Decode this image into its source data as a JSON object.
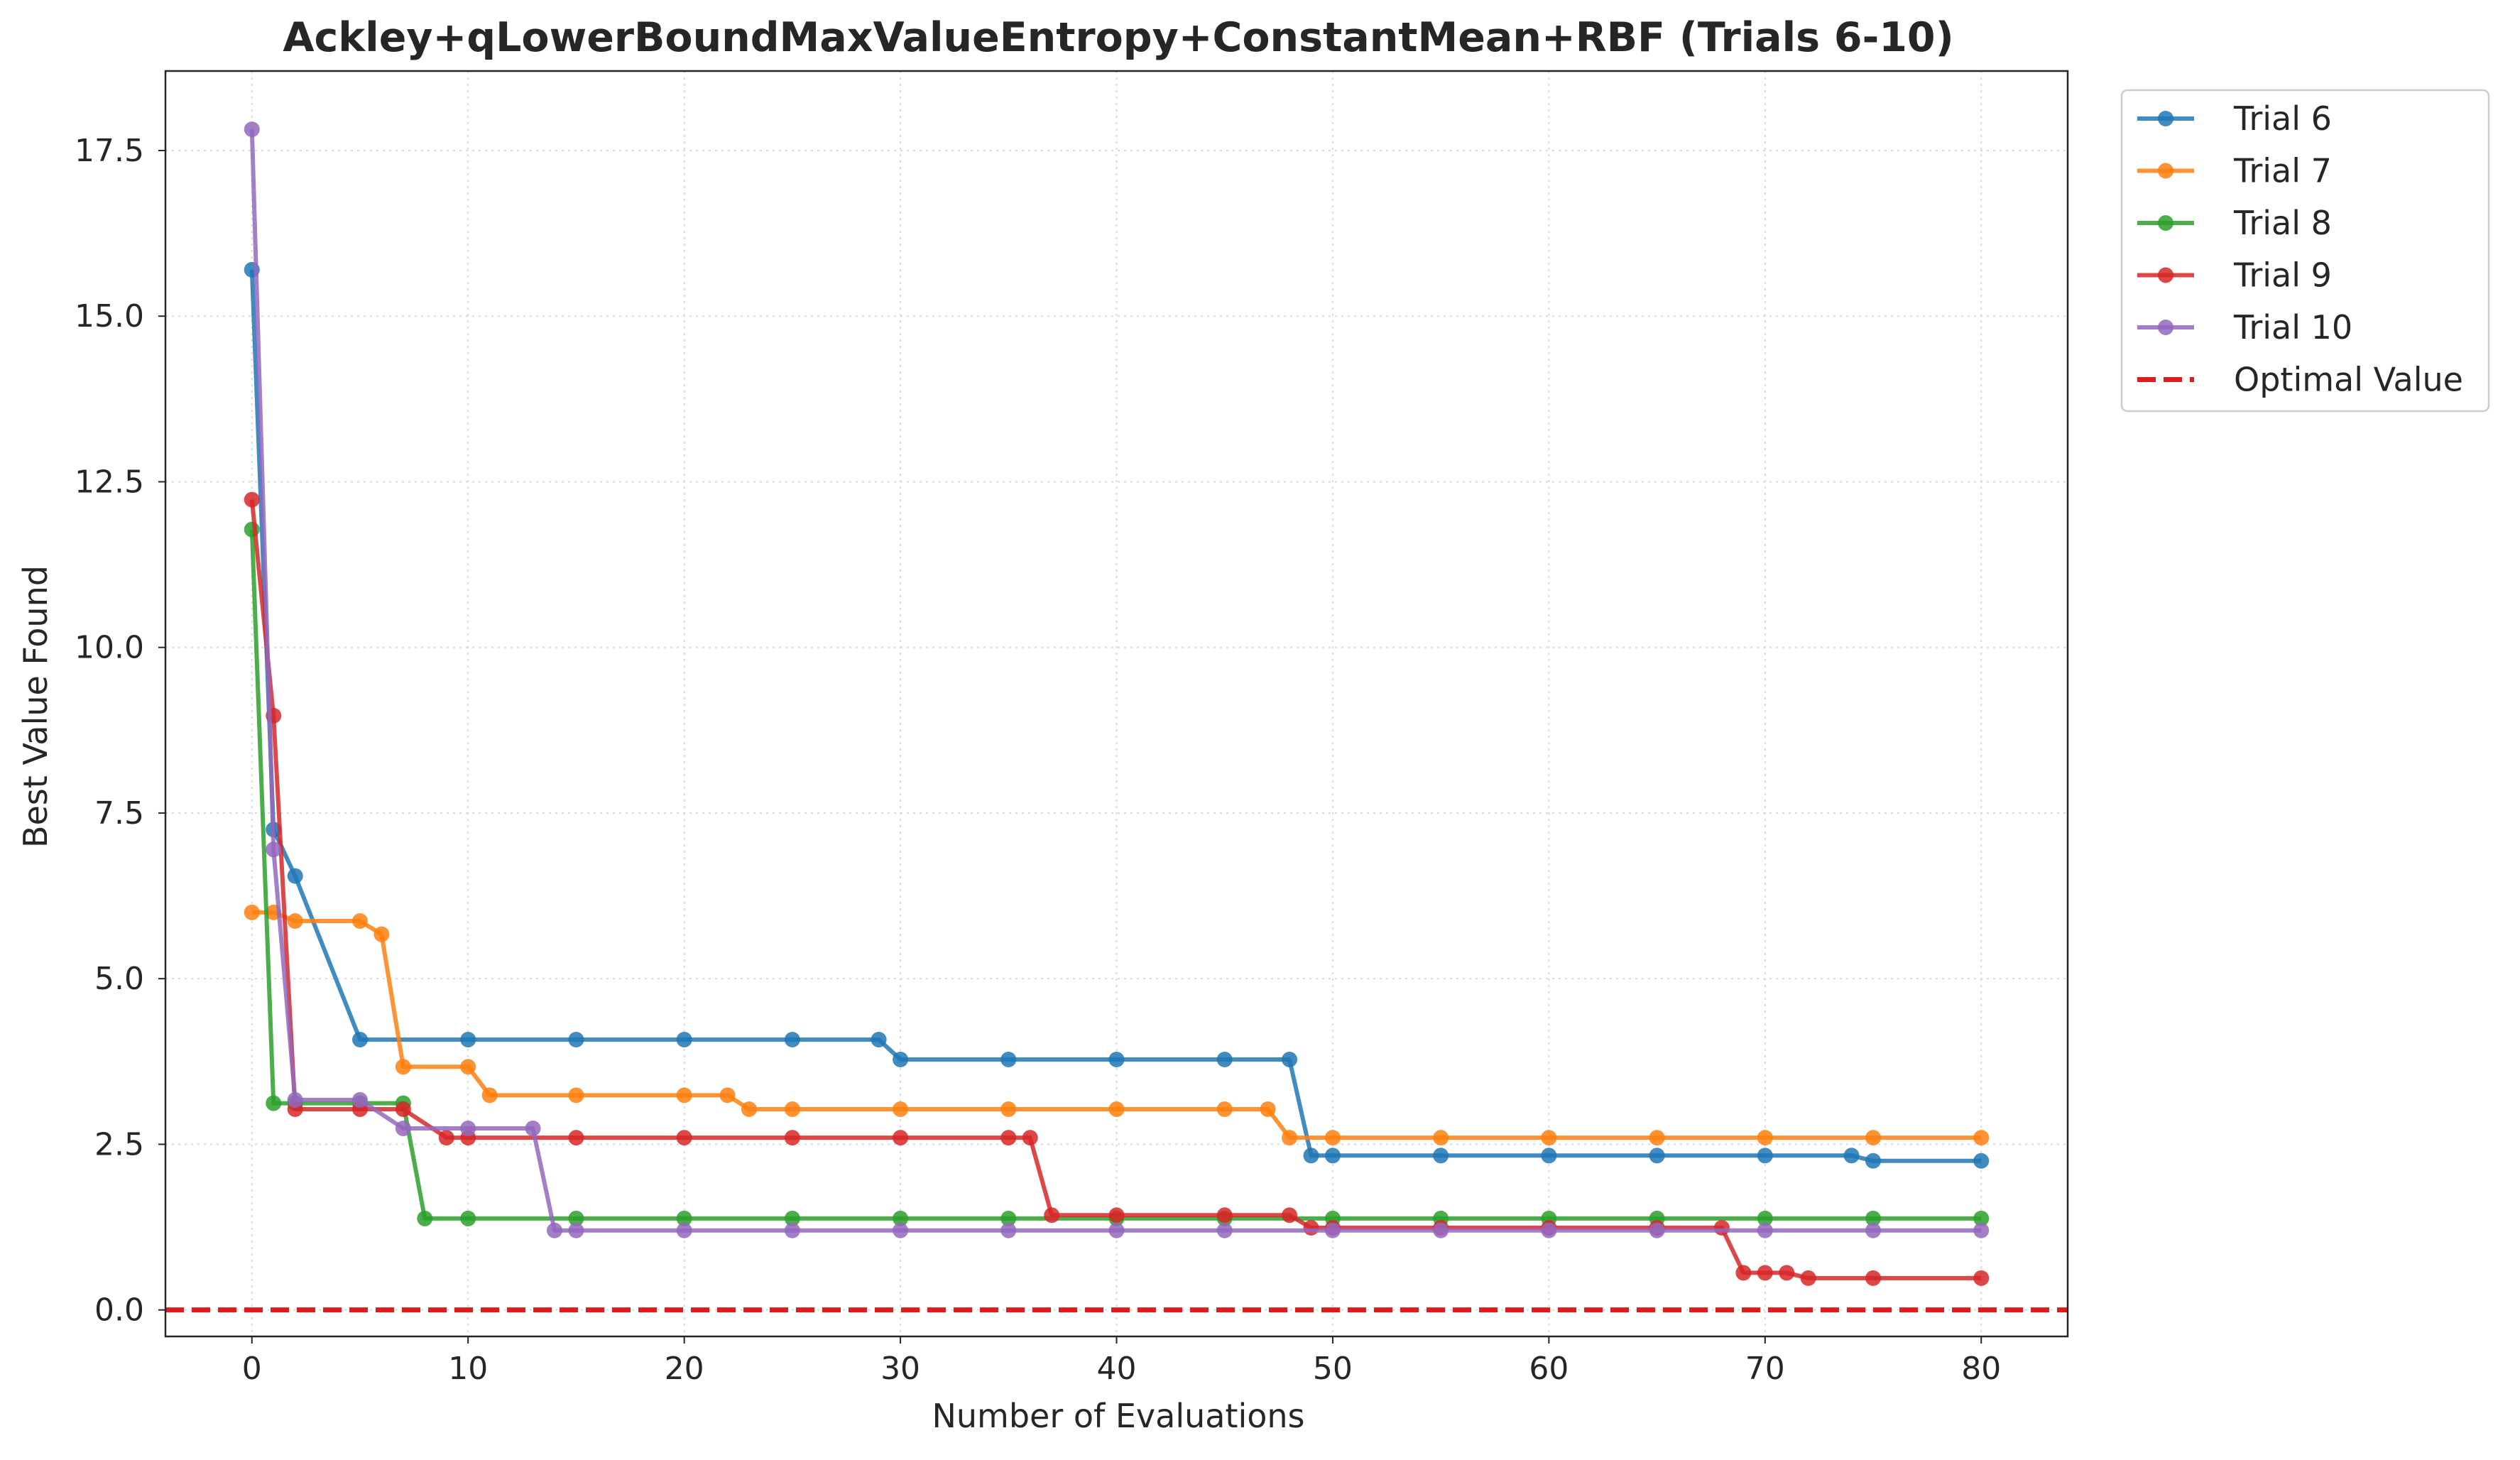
{
  "chart_data": {
    "type": "line",
    "title": "Ackley+qLowerBoundMaxValueEntropy+ConstantMean+RBF (Trials 6-10)",
    "xlabel": "Number of Evaluations",
    "ylabel": "Best Value Found",
    "xlim": [
      -4,
      84
    ],
    "ylim": [
      -0.4,
      18.7
    ],
    "xticks": [
      0,
      10,
      20,
      30,
      40,
      50,
      60,
      70,
      80
    ],
    "yticks": [
      0.0,
      2.5,
      5.0,
      7.5,
      10.0,
      12.5,
      15.0,
      17.5
    ],
    "xtick_labels": [
      "0",
      "10",
      "20",
      "30",
      "40",
      "50",
      "60",
      "70",
      "80"
    ],
    "ytick_labels": [
      "0.0",
      "2.5",
      "5.0",
      "7.5",
      "10.0",
      "12.5",
      "15.0",
      "17.5"
    ],
    "grid": true,
    "legend_position": "outside-top-right",
    "optimal_value": 0.0,
    "optimal_label": "Optimal Value",
    "optimal_color": "#e31a1c",
    "series": [
      {
        "name": "Trial 6",
        "color": "#1f77b4",
        "marker_every": 5,
        "points": [
          [
            0,
            15.7
          ],
          [
            1,
            7.25
          ],
          [
            2,
            6.55
          ],
          [
            5,
            4.08
          ],
          [
            29,
            4.08
          ],
          [
            30,
            3.78
          ],
          [
            48,
            3.78
          ],
          [
            49,
            2.33
          ],
          [
            74,
            2.33
          ],
          [
            75,
            2.25
          ],
          [
            80,
            2.25
          ]
        ]
      },
      {
        "name": "Trial 7",
        "color": "#ff7f0e",
        "marker_every": 5,
        "points": [
          [
            0,
            6.0
          ],
          [
            1,
            6.0
          ],
          [
            2,
            5.87
          ],
          [
            5,
            5.87
          ],
          [
            6,
            5.67
          ],
          [
            7,
            3.67
          ],
          [
            10,
            3.67
          ],
          [
            11,
            3.24
          ],
          [
            22,
            3.24
          ],
          [
            23,
            3.03
          ],
          [
            47,
            3.03
          ],
          [
            48,
            2.6
          ],
          [
            80,
            2.6
          ]
        ]
      },
      {
        "name": "Trial 8",
        "color": "#2ca02c",
        "marker_every": 5,
        "points": [
          [
            0,
            11.78
          ],
          [
            1,
            3.12
          ],
          [
            7,
            3.12
          ],
          [
            8,
            1.38
          ],
          [
            80,
            1.38
          ]
        ]
      },
      {
        "name": "Trial 9",
        "color": "#d62728",
        "marker_every": 5,
        "points": [
          [
            0,
            12.23
          ],
          [
            1,
            8.97
          ],
          [
            2,
            3.03
          ],
          [
            7,
            3.03
          ],
          [
            9,
            2.6
          ],
          [
            36,
            2.6
          ],
          [
            37,
            1.43
          ],
          [
            48,
            1.43
          ],
          [
            49,
            1.24
          ],
          [
            68,
            1.24
          ],
          [
            69,
            0.56
          ],
          [
            71,
            0.56
          ],
          [
            72,
            0.48
          ],
          [
            80,
            0.48
          ]
        ]
      },
      {
        "name": "Trial 10",
        "color": "#9467bd",
        "marker_every": 5,
        "points": [
          [
            0,
            17.82
          ],
          [
            1,
            6.95
          ],
          [
            2,
            3.17
          ],
          [
            5,
            3.17
          ],
          [
            7,
            2.74
          ],
          [
            13,
            2.74
          ],
          [
            14,
            1.2
          ],
          [
            80,
            1.2
          ]
        ]
      }
    ]
  }
}
